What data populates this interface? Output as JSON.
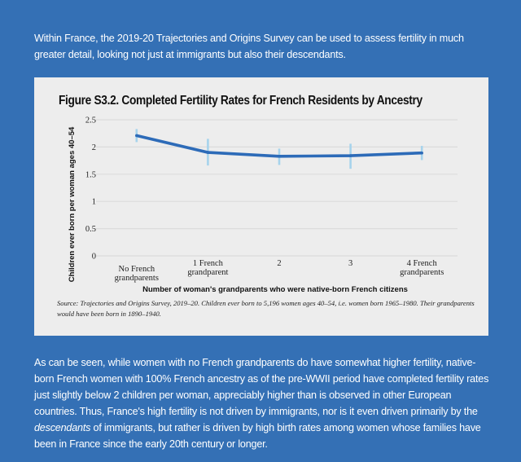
{
  "intro_text": "Within France, the 2019-20 Trajectories and Origins Survey can be used to assess fertility in much greater detail, looking not just at immigrants but also their descendants.",
  "outro": {
    "part1": "As can be seen, while women with no French grandparents do have somewhat higher fertility, native-born French women with 100% French ancestry as of the pre-WWII period have completed fertility rates just slightly below 2 children per woman, appreciably higher than is observed in other European countries. Thus, France's high fertility is not driven by immigrants, nor is it even driven primarily by the ",
    "emphasis": "descendants",
    "part2": " of immigrants, but rather is driven by high birth rates among women whose families have been in France since the early 20th century or longer."
  },
  "source_note": "Source: Trajectories and Origins Survey, 2019–20. Children ever born to 5,196 women ages 40–54, i.e. women born 1965–1980. Their grandparents would have been born in 1890–1940.",
  "colors": {
    "background": "#3470b5",
    "card": "#ededed",
    "line": "#2d6bb8",
    "error_bar": "#a6d3ec",
    "gridline": "#dcdcdc"
  },
  "chart_data": {
    "type": "line",
    "title": "Figure S3.2. Completed Fertility Rates for French Residents by Ancestry",
    "xlabel": "Number of woman's grandparents who were native-born French citizens",
    "ylabel": "Children ever born per woman ages 40–54",
    "categories": [
      [
        "No French",
        "grandparents"
      ],
      [
        "1 French",
        "grandparent"
      ],
      [
        "2"
      ],
      [
        "3"
      ],
      [
        "4 French",
        "grandparents"
      ]
    ],
    "yticks": [
      "0",
      "0.5",
      "1",
      "1.5",
      "2",
      "2.5"
    ],
    "ylim": [
      0,
      2.5
    ],
    "grid": true,
    "series": [
      {
        "name": "Completed fertility",
        "values": [
          2.21,
          1.9,
          1.83,
          1.84,
          1.89
        ],
        "error_low": [
          2.09,
          1.66,
          1.67,
          1.6,
          1.76
        ],
        "error_high": [
          2.33,
          2.15,
          1.97,
          2.06,
          2.02
        ]
      }
    ]
  }
}
